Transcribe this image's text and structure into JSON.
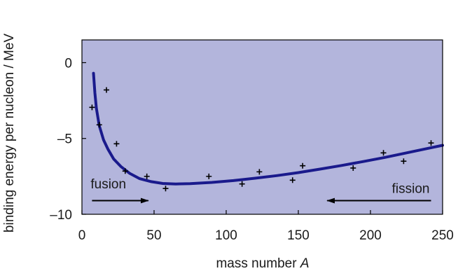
{
  "chart_data": {
    "type": "scatter",
    "title": "",
    "xlabel": "mass number",
    "xlabel_italic": "A",
    "ylabel": "binding energy per nucleon / MeV",
    "xlim": [
      0,
      250
    ],
    "ylim": [
      -10,
      1.5
    ],
    "x_ticks": [
      0,
      50,
      100,
      150,
      200,
      250
    ],
    "x_tick_labels": [
      "0",
      "50",
      "100",
      "150",
      "200",
      "250"
    ],
    "y_ticks": [
      0,
      -5,
      -10
    ],
    "y_tick_labels": [
      "0",
      "–5",
      "–10"
    ],
    "grid": false,
    "colors": {
      "plot_background": "#b3b5dc",
      "curve": "#1a1a8c",
      "points": "#000000",
      "arrows": "#000000"
    },
    "points": [
      {
        "x": 7,
        "y": -2.95
      },
      {
        "x": 12,
        "y": -4.1
      },
      {
        "x": 17,
        "y": -1.8
      },
      {
        "x": 24,
        "y": -5.35
      },
      {
        "x": 30,
        "y": -7.15
      },
      {
        "x": 45,
        "y": -7.5
      },
      {
        "x": 58,
        "y": -8.3
      },
      {
        "x": 88,
        "y": -7.5
      },
      {
        "x": 111,
        "y": -8.0
      },
      {
        "x": 123,
        "y": -7.2
      },
      {
        "x": 146,
        "y": -7.75
      },
      {
        "x": 153,
        "y": -6.8
      },
      {
        "x": 188,
        "y": -6.95
      },
      {
        "x": 209,
        "y": -5.95
      },
      {
        "x": 223,
        "y": -6.5
      },
      {
        "x": 242,
        "y": -5.3
      }
    ],
    "curve": {
      "name": "",
      "points": [
        [
          8,
          -0.7
        ],
        [
          9,
          -2.0
        ],
        [
          10,
          -3.0
        ],
        [
          12,
          -4.15
        ],
        [
          15,
          -5.1
        ],
        [
          18,
          -5.7
        ],
        [
          22,
          -6.35
        ],
        [
          27,
          -6.85
        ],
        [
          33,
          -7.3
        ],
        [
          40,
          -7.65
        ],
        [
          48,
          -7.85
        ],
        [
          56,
          -7.97
        ],
        [
          65,
          -8.0
        ],
        [
          75,
          -7.98
        ],
        [
          90,
          -7.9
        ],
        [
          105,
          -7.78
        ],
        [
          120,
          -7.62
        ],
        [
          135,
          -7.45
        ],
        [
          150,
          -7.25
        ],
        [
          165,
          -7.02
        ],
        [
          180,
          -6.78
        ],
        [
          195,
          -6.52
        ],
        [
          210,
          -6.25
        ],
        [
          225,
          -5.95
        ],
        [
          240,
          -5.65
        ],
        [
          250,
          -5.45
        ]
      ]
    },
    "annotations": [
      {
        "text": "fusion",
        "arrow_direction": "right",
        "arrow_from_x": 7,
        "arrow_to_x": 46,
        "arrow_y": -9.1,
        "text_x": 6,
        "text_y": -8.3
      },
      {
        "text": "fission",
        "arrow_direction": "left",
        "arrow_from_x": 242,
        "arrow_to_x": 170,
        "arrow_y": -9.1,
        "text_x": 241,
        "text_y": -8.6
      }
    ]
  }
}
